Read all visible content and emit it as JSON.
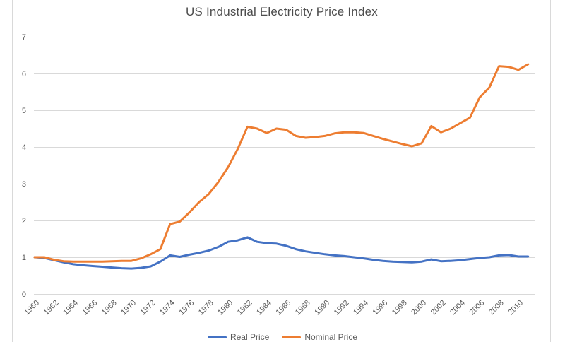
{
  "title": "US Industrial Electricity Price Index",
  "colors": {
    "real_series": "#4472C4",
    "nominal_series": "#ED7D31",
    "gridline": "#D9D9D9",
    "chart_border": "#D9D9D9",
    "axis_label": "#595959",
    "title_text": "#4d4d4d"
  },
  "legend": {
    "items": [
      {
        "label": "Real Price",
        "color": "#4472C4"
      },
      {
        "label": "Nominal Price",
        "color": "#ED7D31"
      }
    ]
  },
  "chart_data": {
    "type": "line",
    "title": "US Industrial Electricity Price Index",
    "xlabel": "",
    "ylabel": "",
    "ylim": [
      0,
      7
    ],
    "y_ticks": [
      0,
      1,
      2,
      3,
      4,
      5,
      6,
      7
    ],
    "grid": "horizontal",
    "legend_position": "bottom",
    "x_tick_labels": [
      "1960",
      "1962",
      "1964",
      "1966",
      "1968",
      "1970",
      "1972",
      "1974",
      "1976",
      "1978",
      "1980",
      "1982",
      "1984",
      "1986",
      "1988",
      "1990",
      "1992",
      "1994",
      "1996",
      "1998",
      "2000",
      "2002",
      "2004",
      "2006",
      "2008",
      "2010"
    ],
    "x": [
      1960,
      1961,
      1962,
      1963,
      1964,
      1965,
      1966,
      1967,
      1968,
      1969,
      1970,
      1971,
      1972,
      1973,
      1974,
      1975,
      1976,
      1977,
      1978,
      1979,
      1980,
      1981,
      1982,
      1983,
      1984,
      1985,
      1986,
      1987,
      1988,
      1989,
      1990,
      1991,
      1992,
      1993,
      1994,
      1995,
      1996,
      1997,
      1998,
      1999,
      2000,
      2001,
      2002,
      2003,
      2004,
      2005,
      2006,
      2007,
      2008,
      2009,
      2010,
      2011
    ],
    "series": [
      {
        "name": "Real Price",
        "color": "#4472C4",
        "values": [
          1.0,
          0.98,
          0.92,
          0.86,
          0.81,
          0.78,
          0.76,
          0.74,
          0.72,
          0.7,
          0.69,
          0.71,
          0.75,
          0.88,
          1.05,
          1.01,
          1.07,
          1.12,
          1.18,
          1.28,
          1.42,
          1.46,
          1.54,
          1.42,
          1.38,
          1.37,
          1.31,
          1.22,
          1.16,
          1.12,
          1.08,
          1.05,
          1.03,
          1.0,
          0.97,
          0.93,
          0.9,
          0.88,
          0.87,
          0.86,
          0.88,
          0.94,
          0.89,
          0.9,
          0.92,
          0.95,
          0.98,
          1.0,
          1.05,
          1.06,
          1.02,
          1.02
        ]
      },
      {
        "name": "Nominal Price",
        "color": "#ED7D31",
        "values": [
          1.0,
          1.0,
          0.93,
          0.89,
          0.88,
          0.88,
          0.88,
          0.88,
          0.89,
          0.9,
          0.9,
          0.97,
          1.08,
          1.22,
          1.9,
          1.97,
          2.22,
          2.5,
          2.72,
          3.05,
          3.45,
          3.95,
          4.55,
          4.5,
          4.38,
          4.5,
          4.47,
          4.3,
          4.25,
          4.27,
          4.3,
          4.37,
          4.4,
          4.4,
          4.38,
          4.3,
          4.22,
          4.15,
          4.08,
          4.02,
          4.1,
          4.57,
          4.4,
          4.5,
          4.65,
          4.8,
          5.35,
          5.62,
          6.2,
          6.18,
          6.1,
          6.25
        ]
      }
    ]
  }
}
